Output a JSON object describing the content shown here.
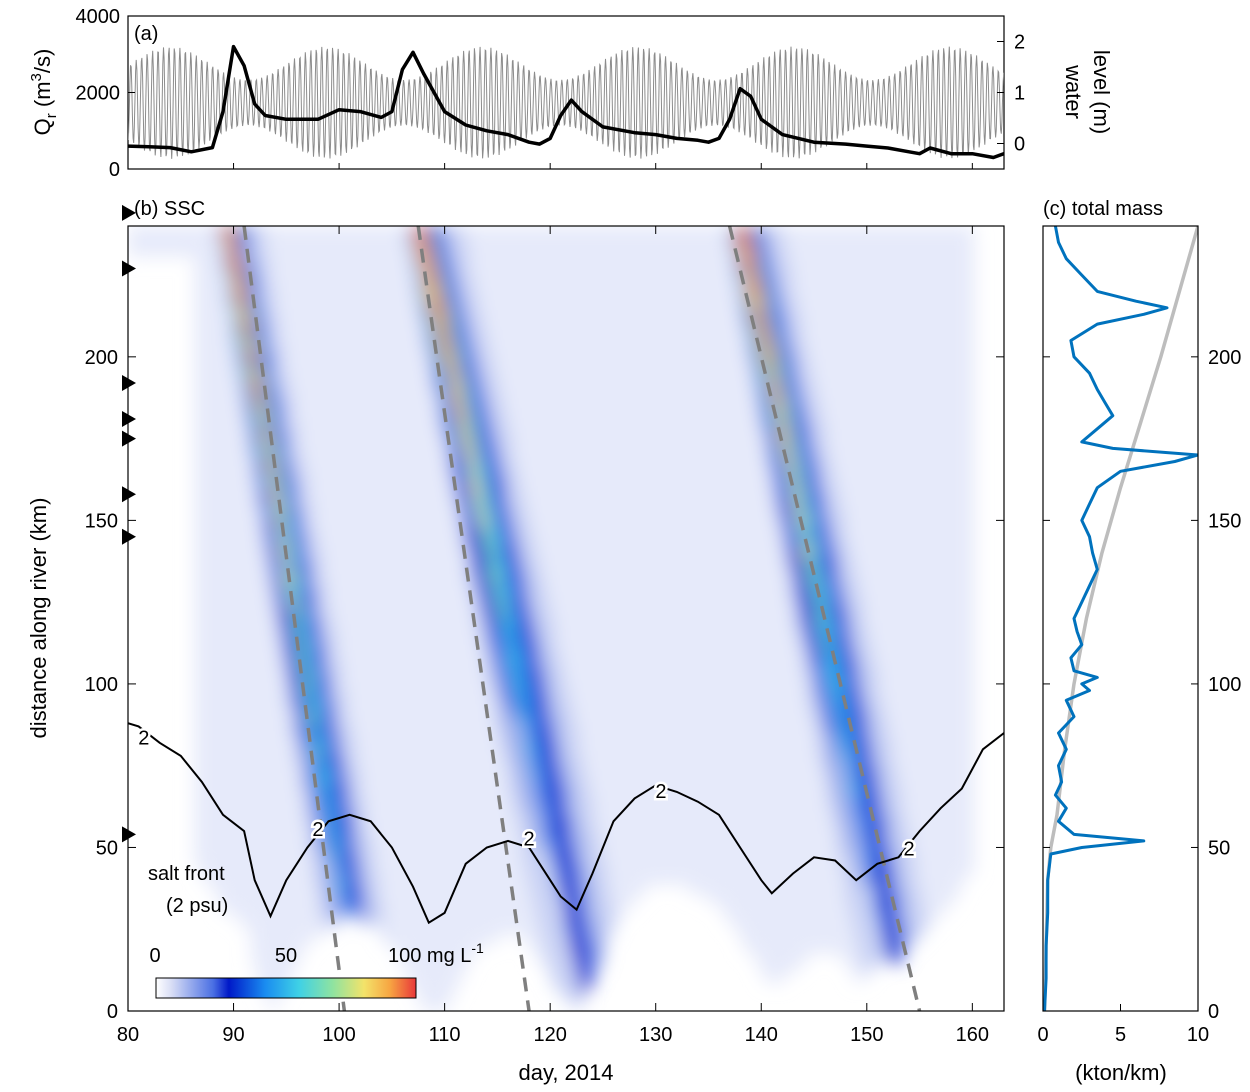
{
  "panel_a": {
    "label": "(a)",
    "left_axis_label_main": "Q",
    "left_axis_label_sub": "r",
    "left_axis_label_rest": " (m",
    "left_axis_label_sup": "3",
    "left_axis_label_end": "/s)",
    "right_axis_label_line1": "water",
    "right_axis_label_line2": "level (m)"
  },
  "panel_b": {
    "label": "(b) SSC",
    "salt_front_line1": "salt front",
    "salt_front_line2": "(2 psu)",
    "contour_label": "2",
    "colorbar_tick_0": "0",
    "colorbar_tick_50": "50",
    "colorbar_tick_100": "100 mg L",
    "colorbar_tick_100_sup": "-1",
    "ylabel": "distance along river (km)",
    "xlabel": "day, 2014"
  },
  "panel_c": {
    "label": "(c) total mass",
    "xlabel": "(kton/km)"
  },
  "chart_data": [
    {
      "type": "line",
      "panel": "(a)",
      "xlim": [
        80,
        163
      ],
      "ylim": [
        0,
        4000
      ],
      "yticks": [
        0,
        2000,
        4000
      ],
      "y2lim": [
        -0.5,
        2.5
      ],
      "y2ticks": [
        0,
        1,
        2
      ],
      "series": [
        {
          "role": "river discharge (black)",
          "color": "#000000",
          "x": [
            80,
            82,
            84,
            86,
            88,
            89,
            90,
            91,
            92,
            93,
            95,
            98,
            100,
            102,
            104,
            105,
            106,
            107,
            108,
            110,
            112,
            114,
            116,
            118,
            119,
            120,
            121,
            122,
            123,
            125,
            128,
            130,
            132,
            134,
            135,
            136,
            137,
            138,
            139,
            140,
            142,
            145,
            148,
            150,
            152,
            154,
            155,
            156,
            158,
            160,
            162,
            163
          ],
          "y": [
            600,
            580,
            560,
            450,
            560,
            1500,
            3200,
            2700,
            1700,
            1400,
            1300,
            1300,
            1550,
            1500,
            1350,
            1500,
            2600,
            3050,
            2500,
            1500,
            1150,
            1000,
            900,
            700,
            650,
            800,
            1400,
            1800,
            1500,
            1100,
            950,
            900,
            800,
            750,
            700,
            800,
            1300,
            2100,
            1900,
            1300,
            900,
            700,
            650,
            600,
            550,
            450,
            400,
            550,
            400,
            400,
            300,
            400
          ]
        },
        {
          "role": "water level (grey, tidal oscillation)",
          "color": "#8c8c8c",
          "mean_level": 0.8,
          "tidal_range_spring": 2.2,
          "tidal_range_neap": 0.9,
          "period_days": 0.517
        }
      ]
    },
    {
      "type": "heatmap",
      "panel": "(b)",
      "title": "(b) SSC",
      "xlabel": "day, 2014",
      "ylabel": "distance along river (km)",
      "xlim": [
        80,
        163
      ],
      "ylim": [
        0,
        240
      ],
      "xticks": [
        80,
        90,
        100,
        110,
        120,
        130,
        140,
        150,
        160
      ],
      "yticks": [
        0,
        50,
        100,
        150,
        200
      ],
      "colorbar": {
        "min": 0,
        "max": 100,
        "ticks": [
          0,
          50,
          100
        ],
        "unit": "mg L-1"
      },
      "station_markers_km": [
        244,
        227,
        192,
        181,
        175,
        158,
        145,
        54
      ],
      "pulses": [
        {
          "start_day": 89,
          "peak_km": 240,
          "slope_km_per_day": -19,
          "intensity": 100
        },
        {
          "start_day": 107,
          "peak_km": 240,
          "slope_km_per_day": -15,
          "intensity": 100
        },
        {
          "start_day": 137.5,
          "peak_km": 240,
          "slope_km_per_day": -16,
          "intensity": 100
        }
      ],
      "dashed_lines": [
        {
          "x": [
            91,
            100.5
          ],
          "y": [
            240,
            0
          ]
        },
        {
          "x": [
            107.5,
            118
          ],
          "y": [
            240,
            0
          ]
        },
        {
          "x": [
            137,
            155
          ],
          "y": [
            240,
            0
          ]
        }
      ],
      "salt_front_2psu": {
        "x": [
          80,
          81,
          83,
          85,
          87,
          89,
          91,
          92,
          93.5,
          95,
          97,
          99,
          101,
          103,
          105,
          107,
          108.5,
          110,
          112,
          114,
          116,
          118,
          120,
          121,
          122.5,
          124,
          126,
          128,
          130,
          132,
          134,
          136,
          138,
          140,
          141,
          143,
          145,
          147,
          149,
          151,
          153,
          155,
          157,
          159,
          161,
          163
        ],
        "y": [
          88,
          87,
          82,
          78,
          70,
          60,
          55,
          40,
          29,
          40,
          50,
          58,
          60,
          58,
          50,
          38,
          27,
          30,
          45,
          50,
          52,
          50,
          40,
          35,
          31,
          42,
          58,
          65,
          69,
          67,
          64,
          60,
          50,
          40,
          36,
          42,
          47,
          46,
          40,
          45,
          47,
          55,
          62,
          68,
          80,
          85
        ]
      }
    },
    {
      "type": "line",
      "panel": "(c)",
      "title": "(c) total mass",
      "xlabel": "(kton/km)",
      "xlim": [
        0,
        10
      ],
      "xticks": [
        0,
        5,
        10
      ],
      "ylim": [
        0,
        240
      ],
      "yticks": [
        0,
        50,
        100,
        150,
        200
      ],
      "series": [
        {
          "role": "mass per km (blue)",
          "color": "#0072bd",
          "y": [
            0,
            10,
            20,
            30,
            40,
            48,
            50,
            52,
            54,
            58,
            62,
            66,
            70,
            75,
            80,
            85,
            90,
            95,
            98,
            100,
            102,
            104,
            108,
            112,
            116,
            120,
            125,
            130,
            135,
            140,
            145,
            150,
            155,
            160,
            165,
            168,
            170,
            172,
            174,
            178,
            182,
            186,
            190,
            195,
            200,
            205,
            210,
            213,
            215,
            217,
            220,
            225,
            230,
            235,
            240
          ],
          "x": [
            0.1,
            0.2,
            0.2,
            0.3,
            0.3,
            0.5,
            2.5,
            6.5,
            2.0,
            1.0,
            1.5,
            0.8,
            1.2,
            1.0,
            1.5,
            1.0,
            2.0,
            1.5,
            3.0,
            2.5,
            3.5,
            2.0,
            1.8,
            2.5,
            2.2,
            2.0,
            2.5,
            3.0,
            3.5,
            3.2,
            3.0,
            2.5,
            3.0,
            3.5,
            5.0,
            8.5,
            10.0,
            4.5,
            2.5,
            3.5,
            4.5,
            4.0,
            3.5,
            3.0,
            2.0,
            1.8,
            3.5,
            6.5,
            8.0,
            6.0,
            3.5,
            2.5,
            1.5,
            1.0,
            0.8
          ]
        },
        {
          "role": "cumulative (grey)",
          "color": "#bdbdbd",
          "y": [
            0,
            20,
            40,
            50,
            60,
            80,
            100,
            120,
            140,
            160,
            180,
            200,
            220,
            240
          ],
          "x": [
            0.1,
            0.2,
            0.3,
            0.5,
            0.9,
            1.4,
            2.0,
            2.8,
            3.8,
            5.0,
            6.3,
            7.6,
            8.8,
            10.0
          ]
        }
      ]
    }
  ]
}
